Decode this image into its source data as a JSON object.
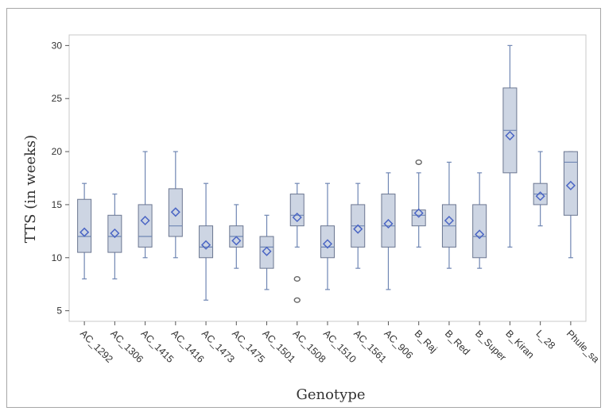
{
  "chart_data": {
    "type": "box",
    "title": "",
    "xlabel": "Genotype",
    "ylabel": "TTS (in weeks)",
    "ylim": [
      4,
      31
    ],
    "yticks": [
      5,
      10,
      15,
      20,
      25,
      30
    ],
    "grid": false,
    "legend": "none",
    "colors": {
      "box_fill": "#cdd5e3",
      "box_stroke": "#6b7690",
      "whisker": "#6f86b3",
      "mean_marker": "#4a65c4",
      "median": "#6f86b3",
      "outlier": "#666666"
    },
    "categories": [
      "AC_1292",
      "AC_1306",
      "AC_1415",
      "AC_1416",
      "AC_1473",
      "AC_1475",
      "AC_1501",
      "AC_1508",
      "AC_1510",
      "AC_1561",
      "AC_906",
      "B_Raj",
      "B_Red",
      "B_Super",
      "B_Kiran",
      "L_28",
      "Phule_sa"
    ],
    "boxes": [
      {
        "min": 8,
        "q1": 10.5,
        "median": 12,
        "mean": 12.4,
        "q3": 15.5,
        "max": 17,
        "outliers": []
      },
      {
        "min": 8,
        "q1": 10.5,
        "median": 12,
        "mean": 12.3,
        "q3": 14,
        "max": 16,
        "outliers": []
      },
      {
        "min": 10,
        "q1": 11,
        "median": 12,
        "mean": 13.5,
        "q3": 15,
        "max": 20,
        "outliers": []
      },
      {
        "min": 10,
        "q1": 12,
        "median": 13,
        "mean": 14.3,
        "q3": 16.5,
        "max": 20,
        "outliers": []
      },
      {
        "min": 6,
        "q1": 10,
        "median": 11,
        "mean": 11.2,
        "q3": 13,
        "max": 17,
        "outliers": []
      },
      {
        "min": 9,
        "q1": 11,
        "median": 12,
        "mean": 11.6,
        "q3": 13,
        "max": 15,
        "outliers": []
      },
      {
        "min": 7,
        "q1": 9,
        "median": 11,
        "mean": 10.6,
        "q3": 12,
        "max": 14,
        "outliers": []
      },
      {
        "min": 11,
        "q1": 13,
        "median": 14,
        "mean": 13.8,
        "q3": 16,
        "max": 17,
        "outliers": [
          8,
          6
        ]
      },
      {
        "min": 7,
        "q1": 10,
        "median": 11,
        "mean": 11.3,
        "q3": 13,
        "max": 17,
        "outliers": []
      },
      {
        "min": 9,
        "q1": 11,
        "median": 13,
        "mean": 12.7,
        "q3": 15,
        "max": 17,
        "outliers": []
      },
      {
        "min": 7,
        "q1": 11,
        "median": 13,
        "mean": 13.2,
        "q3": 16,
        "max": 18,
        "outliers": []
      },
      {
        "min": 11,
        "q1": 13,
        "median": 14,
        "mean": 14.2,
        "q3": 14.5,
        "max": 18,
        "outliers": [
          19
        ]
      },
      {
        "min": 9,
        "q1": 11,
        "median": 13,
        "mean": 13.5,
        "q3": 15,
        "max": 19,
        "outliers": []
      },
      {
        "min": 9,
        "q1": 10,
        "median": 12,
        "mean": 12.2,
        "q3": 15,
        "max": 18,
        "outliers": []
      },
      {
        "min": 11,
        "q1": 18,
        "median": 22,
        "mean": 21.5,
        "q3": 26,
        "max": 30,
        "outliers": []
      },
      {
        "min": 13,
        "q1": 15,
        "median": 16,
        "mean": 15.8,
        "q3": 17,
        "max": 20,
        "outliers": []
      },
      {
        "min": 10,
        "q1": 14,
        "median": 19,
        "mean": 16.8,
        "q3": 20,
        "max": 20,
        "outliers": []
      }
    ]
  }
}
